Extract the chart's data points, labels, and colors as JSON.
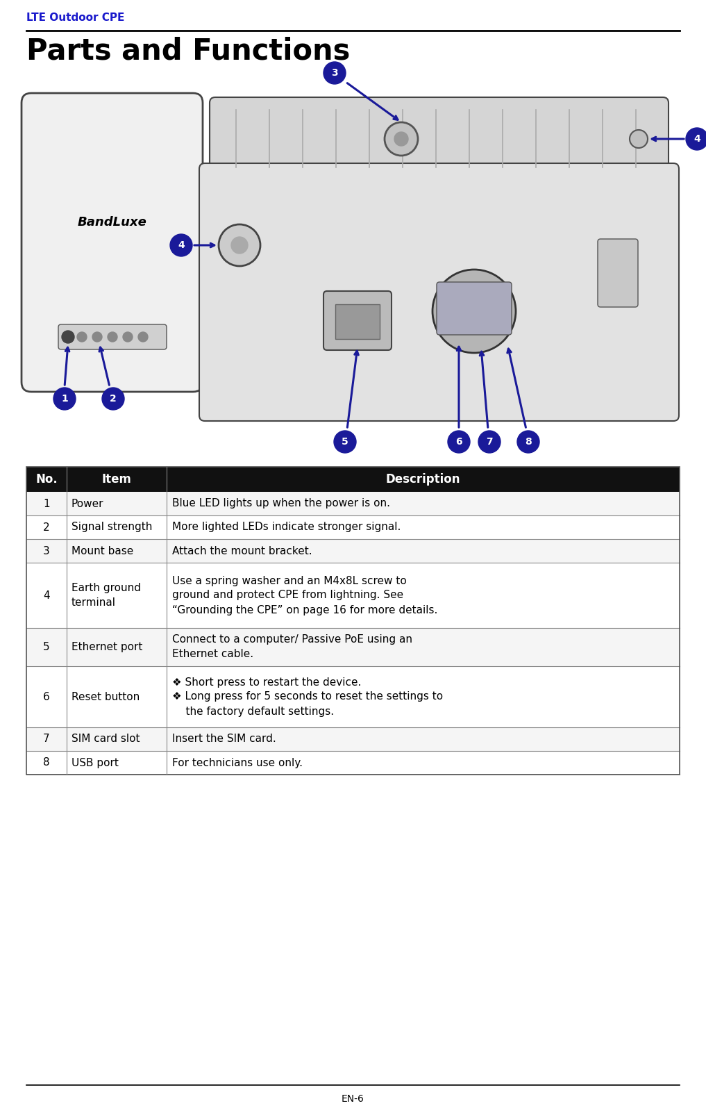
{
  "header_text": "LTE Outdoor CPE",
  "title_text": "Parts and Functions",
  "header_color": "#1a1acc",
  "title_color": "#000000",
  "table_header_bg": "#111111",
  "table_header_fg": "#ffffff",
  "footer_text": "EN-6",
  "number_circle_bg": "#1a1a99",
  "number_circle_fg": "#ffffff",
  "rows": [
    {
      "no": "1",
      "item": "Power",
      "desc": "Blue LED lights up when the power is on."
    },
    {
      "no": "2",
      "item": "Signal strength",
      "desc": "More lighted LEDs indicate stronger signal."
    },
    {
      "no": "3",
      "item": "Mount base",
      "desc": "Attach the mount bracket."
    },
    {
      "no": "4",
      "item": "Earth ground\nterminal",
      "desc": "Use a spring washer and an M4x8L screw to\nground and protect CPE from lightning. See\n“Grounding the CPE” on page 16 for more details."
    },
    {
      "no": "5",
      "item": "Ethernet port",
      "desc": "Connect to a computer/ Passive PoE using an\nEthernet cable."
    },
    {
      "no": "6",
      "item": "Reset button",
      "desc": "❖ Short press to restart the device.\n❖ Long press for 5 seconds to reset the settings to\n    the factory default settings."
    },
    {
      "no": "7",
      "item": "SIM card slot",
      "desc": "Insert the SIM card."
    },
    {
      "no": "8",
      "item": "USB port",
      "desc": "For technicians use only."
    }
  ]
}
